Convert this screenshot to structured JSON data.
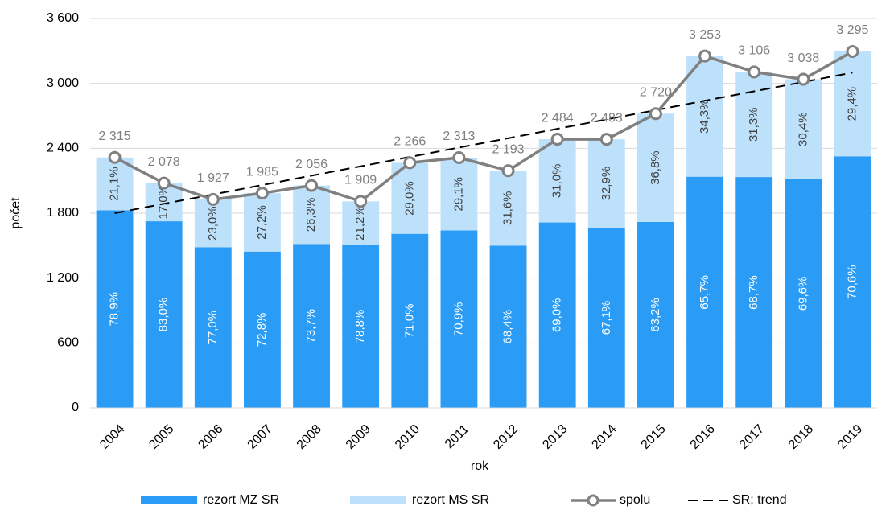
{
  "chart_data": {
    "type": "bar",
    "stacked": true,
    "x_label": "rok",
    "y_label": "počet",
    "categories": [
      "2004",
      "2005",
      "2006",
      "2007",
      "2008",
      "2009",
      "2010",
      "2011",
      "2012",
      "2013",
      "2014",
      "2015",
      "2016",
      "2017",
      "2018",
      "2019"
    ],
    "ylim": [
      0,
      3600
    ],
    "yticks": [
      0,
      600,
      {
        "value": 1200,
        "label": "1 200"
      },
      {
        "value": 1800,
        "label": "1 800"
      },
      {
        "value": 2400,
        "label": "2 400"
      },
      {
        "value": 3000,
        "label": "3 000"
      },
      {
        "value": 3600,
        "label": "3 600"
      }
    ],
    "grid": true,
    "legend": "bottom",
    "series": [
      {
        "name": "rezort MZ SR",
        "type": "bar",
        "color": "#2b9cf5",
        "text_color": "#ffffff",
        "values": [
          1826,
          1725,
          1484,
          1445,
          1515,
          1504,
          1609,
          1640,
          1500,
          1714,
          1666,
          1719,
          2137,
          2134,
          2114,
          2326
        ],
        "share_labels": [
          "78,9%",
          "83,0%",
          "77,0%",
          "72,8%",
          "73,7%",
          "78,8%",
          "71,0%",
          "70,9%",
          "68,4%",
          "69,0%",
          "67,1%",
          "63,2%",
          "65,7%",
          "68,7%",
          "69,6%",
          "70,6%"
        ]
      },
      {
        "name": "rezort MS SR",
        "type": "bar",
        "color": "#bde0fb",
        "text_color": "#404040",
        "values": [
          489,
          353,
          443,
          540,
          541,
          405,
          657,
          673,
          693,
          770,
          817,
          1001,
          1116,
          972,
          924,
          969
        ],
        "share_labels": [
          "21,1%",
          "17,0%",
          "23,0%",
          "27,2%",
          "26,3%",
          "21,2%",
          "29,0%",
          "29,1%",
          "31,6%",
          "31,0%",
          "32,9%",
          "36,8%",
          "34,3%",
          "31,3%",
          "30,4%",
          "29,4%"
        ]
      },
      {
        "name": "spolu",
        "type": "line",
        "color": "#808080",
        "markers": true,
        "values": [
          2315,
          2078,
          1927,
          1985,
          2056,
          1909,
          2266,
          2313,
          2193,
          2484,
          2483,
          2720,
          3253,
          3106,
          3038,
          3295
        ],
        "value_labels": [
          "2 315",
          "2 078",
          "1 927",
          "1 985",
          "2 056",
          "1 909",
          "2 266",
          "2 313",
          "2 193",
          "2 484",
          "2 483",
          "2 720",
          "3 253",
          "3 106",
          "3 038",
          "3 295"
        ]
      },
      {
        "name": "SR; trend",
        "type": "line",
        "color": "#000000",
        "dashed": true,
        "values": [
          1800,
          1887,
          1973,
          2060,
          2147,
          2233,
          2320,
          2407,
          2493,
          2580,
          2667,
          2753,
          2840,
          2927,
          3013,
          3100
        ]
      }
    ]
  }
}
